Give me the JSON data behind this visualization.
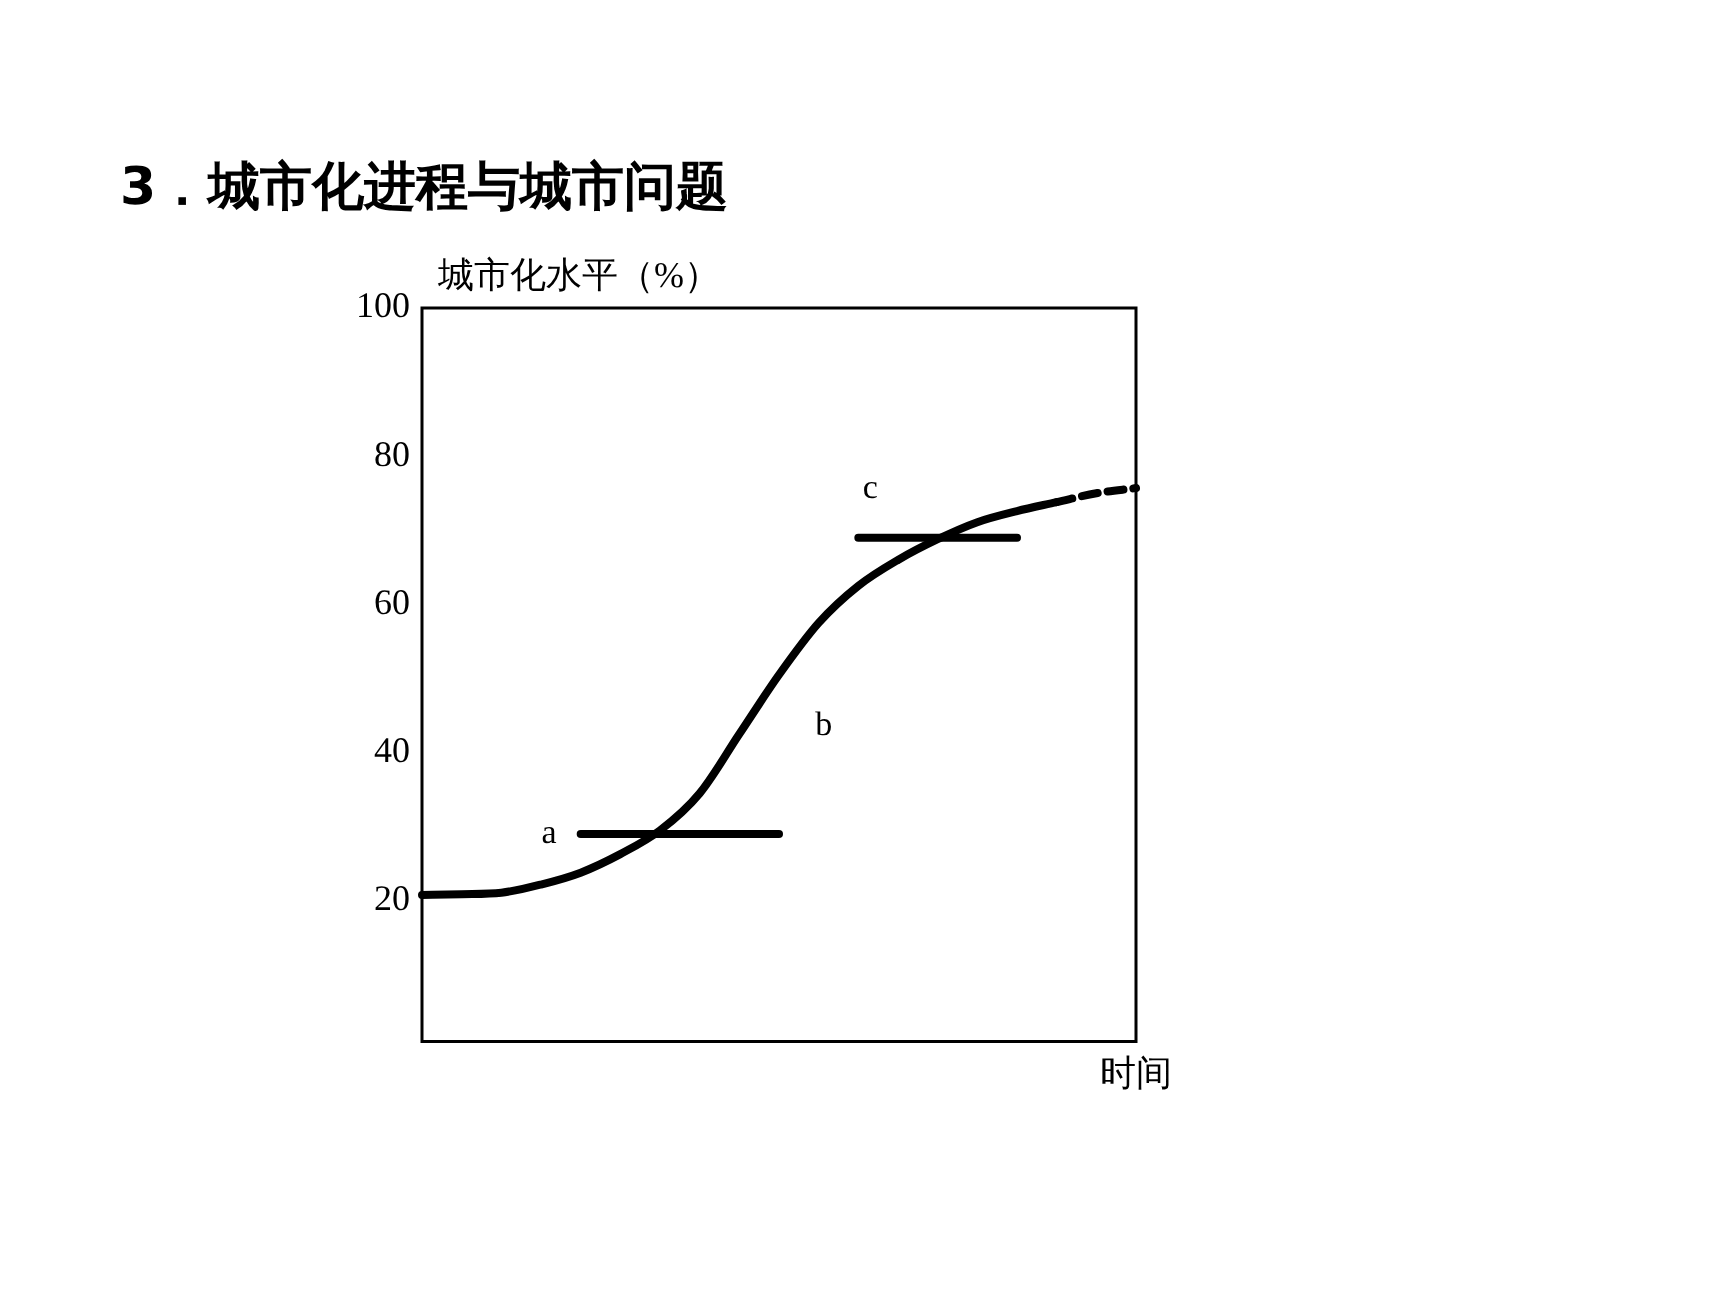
{
  "chart_data": {
    "type": "line",
    "title": "3．城市化进程与城市问题",
    "ylabel": "城市化水平（%）",
    "xlabel": "时间",
    "ylim": [
      1,
      100
    ],
    "yticks": [
      20,
      40,
      60,
      80,
      100
    ],
    "marker": "none",
    "categories": [
      null,
      null,
      null,
      null,
      null,
      null,
      null,
      null,
      null,
      null,
      null,
      null,
      null,
      null,
      null,
      null,
      null,
      null,
      null
    ],
    "series": [
      {
        "color": "#000000",
        "line_style": "solid",
        "values": [
          20.8,
          20.9,
          21.1,
          22.2,
          23.8,
          26.3,
          29.5,
          34.5,
          42.5,
          50.5,
          57.5,
          62.5,
          66,
          68.8,
          71.1,
          72.6,
          73.8,
          null,
          null
        ]
      },
      {
        "color": "#000000",
        "line_style": "dashed",
        "values": [
          null,
          null,
          null,
          null,
          null,
          null,
          null,
          null,
          null,
          null,
          null,
          null,
          null,
          null,
          null,
          null,
          73.8,
          75,
          75.7
        ]
      },
      {
        "name": "a",
        "color": "#000000",
        "line_style": "solid",
        "values": [
          null,
          null,
          null,
          null,
          29,
          29,
          29,
          29,
          29,
          29,
          null,
          null,
          null,
          null,
          null,
          null,
          null,
          null,
          null
        ]
      },
      {
        "name": "c",
        "color": "#000000",
        "line_style": "solid",
        "values": [
          null,
          null,
          null,
          null,
          null,
          null,
          null,
          null,
          null,
          null,
          null,
          69,
          69,
          69,
          69,
          69,
          null,
          null,
          null
        ]
      }
    ],
    "annotations": [
      "b"
    ]
  }
}
